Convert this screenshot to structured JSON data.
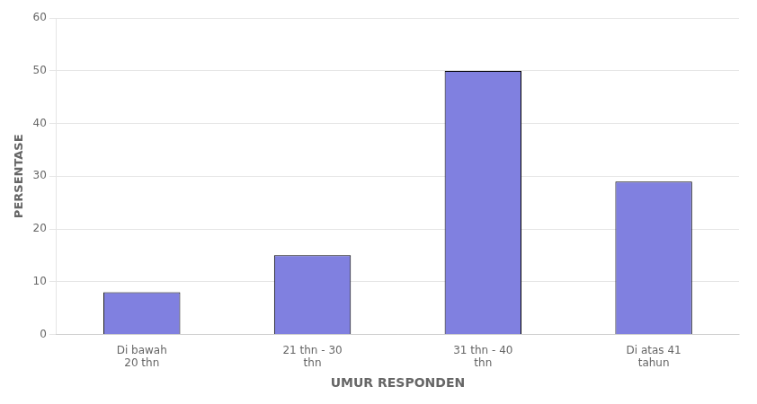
{
  "chart_data": {
    "type": "bar",
    "categories": [
      "Di bawah\n20 thn",
      "21 thn - 30\nthn",
      "31 thn - 40\nthn",
      "Di atas 41\ntahun"
    ],
    "values": [
      8,
      15,
      50,
      29
    ],
    "color": "#8080e0",
    "xlabel": "UMUR RESPONDEN",
    "ylabel": "PERSENTASE",
    "ylim": [
      0,
      60
    ],
    "yticks": [
      0,
      10,
      20,
      30,
      40,
      50,
      60
    ],
    "grid": true
  }
}
